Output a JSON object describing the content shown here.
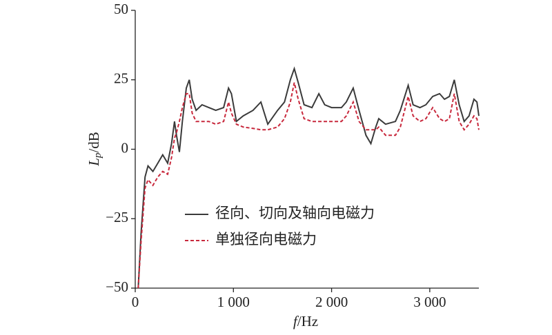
{
  "chart_data": {
    "type": "line",
    "x_label": {
      "symbol": "f",
      "unit": "/Hz"
    },
    "y_label": {
      "symbol": "L",
      "subscript": "p",
      "unit": "/dB"
    },
    "x": [
      30,
      60,
      100,
      130,
      180,
      230,
      280,
      330,
      370,
      400,
      420,
      450,
      480,
      520,
      550,
      580,
      620,
      680,
      750,
      820,
      900,
      950,
      980,
      1030,
      1100,
      1200,
      1280,
      1350,
      1450,
      1520,
      1580,
      1620,
      1660,
      1720,
      1800,
      1870,
      1930,
      2000,
      2100,
      2150,
      2220,
      2280,
      2350,
      2400,
      2450,
      2480,
      2550,
      2650,
      2700,
      2780,
      2830,
      2900,
      2960,
      3030,
      3100,
      3150,
      3200,
      3250,
      3300,
      3350,
      3400,
      3450,
      3480,
      3500
    ],
    "series": [
      {
        "name": "径向、切向及轴向电磁力",
        "color": "#3a3a3a",
        "dash": false,
        "values": [
          -50,
          -30,
          -10,
          -6,
          -8,
          -5,
          -2,
          -5,
          2,
          10,
          5,
          -1,
          10,
          22,
          25,
          18,
          14,
          16,
          15,
          14,
          15,
          22,
          20,
          10,
          12,
          14,
          17,
          9,
          14,
          17,
          25,
          29,
          24,
          16,
          15,
          20,
          16,
          15,
          15,
          17,
          22,
          14,
          5,
          2,
          8,
          11,
          9,
          10,
          14,
          23,
          16,
          15,
          16,
          19,
          20,
          18,
          19,
          25,
          16,
          10,
          12,
          18,
          17,
          12
        ]
      },
      {
        "name": "单独径向电磁力",
        "color": "#c8283c",
        "dash": true,
        "values": [
          -50,
          -33,
          -14,
          -11,
          -13,
          -10,
          -8,
          -9,
          -3,
          4,
          6,
          10,
          15,
          20,
          20,
          13,
          10,
          10,
          10,
          9,
          10,
          17,
          13,
          9,
          8,
          7.5,
          7,
          7,
          8,
          11,
          17,
          24,
          18,
          11,
          10,
          10,
          10,
          10,
          10,
          12,
          17,
          10,
          7,
          7,
          7,
          8,
          5,
          5,
          8,
          19,
          12,
          10,
          11,
          15,
          11,
          10,
          11,
          20,
          10,
          7,
          9,
          12,
          11,
          7
        ]
      }
    ],
    "xlim": [
      0,
      3500
    ],
    "xticks": [
      0,
      {
        "value": 1000,
        "label": "1 000"
      },
      {
        "value": 2000,
        "label": "2 000"
      },
      {
        "value": 3000,
        "label": "3 000"
      }
    ],
    "ylim": [
      -50,
      50
    ],
    "yticks": [
      {
        "value": -50,
        "label": "−50"
      },
      {
        "value": -25,
        "label": "−25"
      },
      0,
      25,
      50
    ],
    "legend": "center-left"
  }
}
